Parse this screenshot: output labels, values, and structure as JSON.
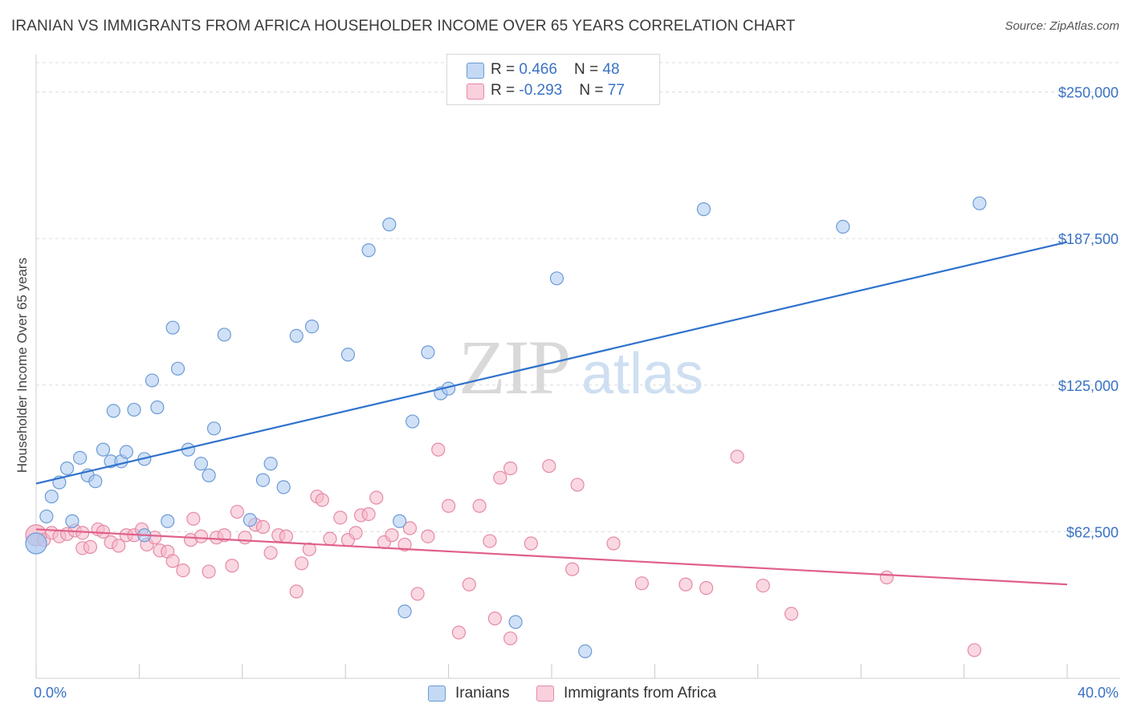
{
  "title": "IRANIAN VS IMMIGRANTS FROM AFRICA HOUSEHOLDER INCOME OVER 65 YEARS CORRELATION CHART",
  "source": "Source: ZipAtlas.com",
  "watermark": {
    "zip": "ZIP",
    "atlas": "atlas"
  },
  "legend_top": {
    "rows": [
      {
        "r_label": "R = ",
        "r_value": "0.466",
        "n_label": "N = ",
        "n_value": "48",
        "color": "#a9c8f0"
      },
      {
        "r_label": "R = ",
        "r_value": "-0.293",
        "n_label": "N = ",
        "n_value": "77",
        "color": "#f6b8c9"
      }
    ]
  },
  "legend_bottom": {
    "series1": "Iranians",
    "series2": "Immigrants from Africa"
  },
  "colors": {
    "blue_fill": "#a9c8f0",
    "blue_stroke": "#6c9bd6",
    "blue_line": "#2f72cc",
    "pink_fill": "#f6b8c9",
    "pink_stroke": "#e58aa6",
    "pink_line": "#e0608a",
    "axis_label": "#3a72c4",
    "grid": "#dcdcdc"
  },
  "chart_data": {
    "type": "scatter",
    "title": "IRANIAN VS IMMIGRANTS FROM AFRICA HOUSEHOLDER INCOME OVER 65 YEARS CORRELATION CHART",
    "xlabel": "",
    "ylabel": "Householder Income Over 65 years",
    "xlim": [
      0,
      40
    ],
    "ylim": [
      0,
      262500
    ],
    "x_tick_labels": [
      "0.0%",
      "40.0%"
    ],
    "y_ticks": [
      62500,
      125000,
      187500,
      250000
    ],
    "y_tick_labels": [
      "$62,500",
      "$125,000",
      "$187,500",
      "$250,000"
    ],
    "grid": true,
    "legend_position": "top-center",
    "series": [
      {
        "name": "Iranians",
        "R": 0.466,
        "N": 48,
        "trend": {
          "x": [
            0,
            40
          ],
          "y": [
            83000,
            186000
          ]
        },
        "points": [
          [
            0.0,
            57500
          ],
          [
            0.4,
            69000
          ],
          [
            0.6,
            77500
          ],
          [
            0.9,
            83500
          ],
          [
            1.2,
            89500
          ],
          [
            1.4,
            67000
          ],
          [
            1.7,
            94000
          ],
          [
            2.0,
            86500
          ],
          [
            2.3,
            84000
          ],
          [
            2.6,
            97500
          ],
          [
            2.9,
            92500
          ],
          [
            3.0,
            114000
          ],
          [
            3.3,
            92500
          ],
          [
            3.5,
            96500
          ],
          [
            3.8,
            114500
          ],
          [
            4.2,
            93500
          ],
          [
            4.5,
            127000
          ],
          [
            4.7,
            115500
          ],
          [
            5.1,
            67000
          ],
          [
            5.3,
            149500
          ],
          [
            5.5,
            132000
          ],
          [
            5.9,
            97500
          ],
          [
            6.4,
            91500
          ],
          [
            6.7,
            86500
          ],
          [
            6.9,
            106500
          ],
          [
            7.3,
            146500
          ],
          [
            8.3,
            67500
          ],
          [
            8.8,
            84500
          ],
          [
            9.1,
            91500
          ],
          [
            9.6,
            81500
          ],
          [
            10.1,
            146000
          ],
          [
            10.7,
            150000
          ],
          [
            12.1,
            138000
          ],
          [
            12.9,
            182500
          ],
          [
            13.7,
            193500
          ],
          [
            14.1,
            67000
          ],
          [
            14.3,
            28500
          ],
          [
            14.6,
            109500
          ],
          [
            15.2,
            139000
          ],
          [
            15.7,
            121500
          ],
          [
            16.0,
            123500
          ],
          [
            18.6,
            24000
          ],
          [
            20.2,
            170500
          ],
          [
            21.3,
            11500
          ],
          [
            25.9,
            200000
          ],
          [
            31.3,
            192500
          ],
          [
            36.6,
            202500
          ],
          [
            4.2,
            61000
          ]
        ]
      },
      {
        "name": "Immigrants from Africa",
        "R": -0.293,
        "N": 77,
        "trend": {
          "x": [
            0,
            40
          ],
          "y": [
            63500,
            40000
          ]
        },
        "points": [
          [
            0.0,
            61000
          ],
          [
            0.3,
            59000
          ],
          [
            0.6,
            62000
          ],
          [
            0.9,
            60500
          ],
          [
            1.2,
            61500
          ],
          [
            1.5,
            63000
          ],
          [
            1.8,
            62000
          ],
          [
            1.8,
            55500
          ],
          [
            2.1,
            56000
          ],
          [
            2.4,
            63500
          ],
          [
            2.6,
            62500
          ],
          [
            2.9,
            58000
          ],
          [
            3.2,
            56500
          ],
          [
            3.5,
            61000
          ],
          [
            3.8,
            61000
          ],
          [
            4.1,
            63500
          ],
          [
            4.3,
            57000
          ],
          [
            4.6,
            60000
          ],
          [
            4.8,
            54500
          ],
          [
            5.1,
            54000
          ],
          [
            5.3,
            50000
          ],
          [
            5.7,
            46000
          ],
          [
            6.0,
            59000
          ],
          [
            6.1,
            68000
          ],
          [
            6.4,
            60500
          ],
          [
            6.7,
            45500
          ],
          [
            7.0,
            60000
          ],
          [
            7.3,
            61000
          ],
          [
            7.6,
            48000
          ],
          [
            7.8,
            71000
          ],
          [
            8.1,
            60000
          ],
          [
            8.5,
            65500
          ],
          [
            8.8,
            64500
          ],
          [
            9.1,
            53500
          ],
          [
            9.4,
            61000
          ],
          [
            9.7,
            60500
          ],
          [
            10.1,
            37000
          ],
          [
            10.3,
            49000
          ],
          [
            10.6,
            55000
          ],
          [
            10.9,
            77500
          ],
          [
            11.1,
            76000
          ],
          [
            11.4,
            59500
          ],
          [
            11.8,
            68500
          ],
          [
            12.1,
            59000
          ],
          [
            12.4,
            62000
          ],
          [
            12.6,
            69500
          ],
          [
            12.9,
            70000
          ],
          [
            13.2,
            77000
          ],
          [
            13.5,
            58000
          ],
          [
            13.8,
            61000
          ],
          [
            14.3,
            57000
          ],
          [
            14.5,
            64000
          ],
          [
            14.8,
            36000
          ],
          [
            15.2,
            60500
          ],
          [
            15.6,
            97500
          ],
          [
            16.0,
            73500
          ],
          [
            16.4,
            19500
          ],
          [
            16.8,
            40000
          ],
          [
            17.2,
            73500
          ],
          [
            17.6,
            58500
          ],
          [
            17.8,
            25500
          ],
          [
            18.0,
            85500
          ],
          [
            18.4,
            89500
          ],
          [
            18.4,
            17000
          ],
          [
            19.2,
            57500
          ],
          [
            19.9,
            90500
          ],
          [
            20.8,
            46500
          ],
          [
            21.0,
            82500
          ],
          [
            22.4,
            57500
          ],
          [
            23.5,
            40500
          ],
          [
            25.2,
            40000
          ],
          [
            26.0,
            38500
          ],
          [
            27.2,
            94500
          ],
          [
            28.2,
            39500
          ],
          [
            29.3,
            27500
          ],
          [
            33.0,
            43000
          ],
          [
            36.4,
            12000
          ]
        ]
      }
    ]
  }
}
